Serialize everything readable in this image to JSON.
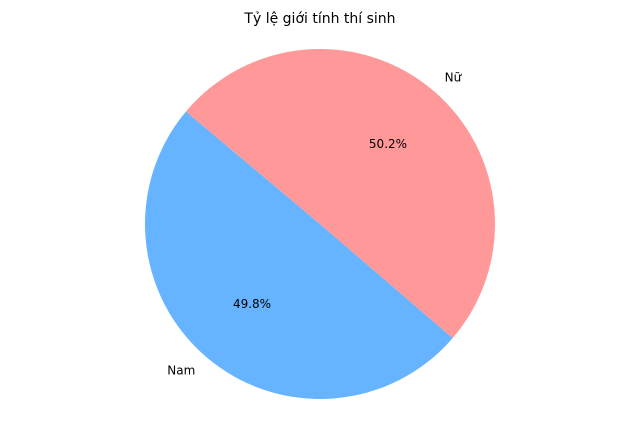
{
  "chart_data": {
    "type": "pie",
    "title": "Tỷ lệ giới tính thí sinh",
    "start_angle_deg": 140,
    "direction": "counterclockwise",
    "slices": [
      {
        "label": "Nam",
        "value": 49.8,
        "pct_text": "49.8%",
        "color": "#66b3ff"
      },
      {
        "label": "Nữ",
        "value": 50.2,
        "pct_text": "50.2%",
        "color": "#ff9999"
      }
    ]
  }
}
